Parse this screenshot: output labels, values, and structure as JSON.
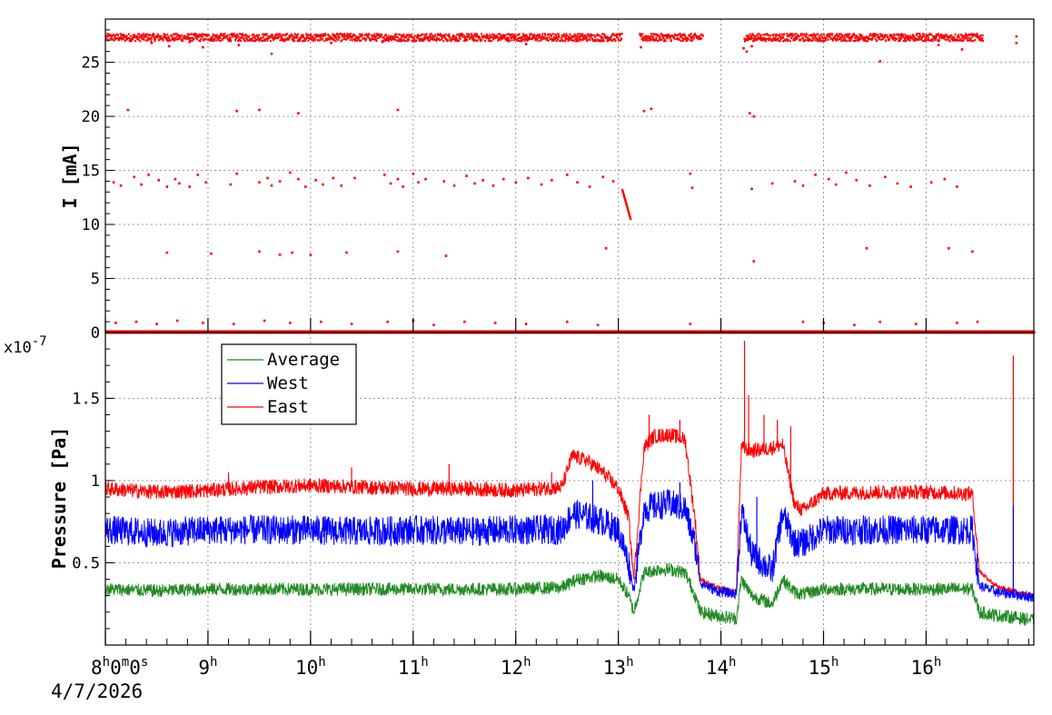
{
  "chart_data": [
    {
      "type": "scatter",
      "title": "",
      "xlabel": "",
      "ylabel": "I [mA]",
      "ylim": [
        0,
        29
      ],
      "y_ticks": [
        0,
        5,
        10,
        15,
        20,
        25
      ],
      "grid": true,
      "x_unit": "hour of day",
      "series": [
        {
          "color": "#ff0000",
          "bands": [
            {
              "level": 27.3,
              "spread": 0.35,
              "segments": [
                [
                  8.0,
                  13.03
                ],
                [
                  13.2,
                  13.82
                ],
                [
                  14.22,
                  16.55
                ]
              ]
            },
            {
              "level": 0.0,
              "spread": 0.0,
              "segments": [
                [
                  8.0,
                  17.05
                ]
              ]
            }
          ],
          "points": [
            [
              8.08,
              13.9
            ],
            [
              8.15,
              13.6
            ],
            [
              8.28,
              14.4
            ],
            [
              8.35,
              13.7
            ],
            [
              8.42,
              14.6
            ],
            [
              8.52,
              14.1
            ],
            [
              8.6,
              13.5
            ],
            [
              8.68,
              14.2
            ],
            [
              8.72,
              13.8
            ],
            [
              8.82,
              13.5
            ],
            [
              8.9,
              14.6
            ],
            [
              8.98,
              13.9
            ],
            [
              9.28,
              14.7
            ],
            [
              9.22,
              13.7
            ],
            [
              9.5,
              13.9
            ],
            [
              9.58,
              14.3
            ],
            [
              9.62,
              13.6
            ],
            [
              9.7,
              14.0
            ],
            [
              9.8,
              14.8
            ],
            [
              9.88,
              14.2
            ],
            [
              9.95,
              13.5
            ],
            [
              10.05,
              14.1
            ],
            [
              10.12,
              13.7
            ],
            [
              10.22,
              14.3
            ],
            [
              10.3,
              13.6
            ],
            [
              10.43,
              14.3
            ],
            [
              10.72,
              14.6
            ],
            [
              10.78,
              13.8
            ],
            [
              10.85,
              14.2
            ],
            [
              10.9,
              13.5
            ],
            [
              11.0,
              14.7
            ],
            [
              11.05,
              13.9
            ],
            [
              11.12,
              14.2
            ],
            [
              11.3,
              14.0
            ],
            [
              11.4,
              13.6
            ],
            [
              11.52,
              14.5
            ],
            [
              11.6,
              13.8
            ],
            [
              11.68,
              14.1
            ],
            [
              11.78,
              13.6
            ],
            [
              11.88,
              14.2
            ],
            [
              12.0,
              13.9
            ],
            [
              12.12,
              14.3
            ],
            [
              12.25,
              13.7
            ],
            [
              12.35,
              14.1
            ],
            [
              12.5,
              14.6
            ],
            [
              12.6,
              13.9
            ],
            [
              12.72,
              13.5
            ],
            [
              12.85,
              14.4
            ],
            [
              12.95,
              14.0
            ],
            [
              13.7,
              14.7
            ],
            [
              13.72,
              13.4
            ],
            [
              14.3,
              13.3
            ],
            [
              14.5,
              13.8
            ],
            [
              14.72,
              14.0
            ],
            [
              14.8,
              13.6
            ],
            [
              14.92,
              14.6
            ],
            [
              15.05,
              14.2
            ],
            [
              15.12,
              13.7
            ],
            [
              15.22,
              14.8
            ],
            [
              15.32,
              14.1
            ],
            [
              15.45,
              13.6
            ],
            [
              15.6,
              14.4
            ],
            [
              15.72,
              13.8
            ],
            [
              15.85,
              13.5
            ],
            [
              16.05,
              13.9
            ],
            [
              16.18,
              14.2
            ],
            [
              16.3,
              13.5
            ],
            [
              8.22,
              20.6
            ],
            [
              9.28,
              20.5
            ],
            [
              9.5,
              20.6
            ],
            [
              9.88,
              20.3
            ],
            [
              10.85,
              20.6
            ],
            [
              13.25,
              20.5
            ],
            [
              13.32,
              20.7
            ],
            [
              14.28,
              20.3
            ],
            [
              14.32,
              20.0
            ],
            [
              8.6,
              7.4
            ],
            [
              9.03,
              7.3
            ],
            [
              9.5,
              7.5
            ],
            [
              9.7,
              7.2
            ],
            [
              9.82,
              7.4
            ],
            [
              10.0,
              7.2
            ],
            [
              10.35,
              7.4
            ],
            [
              10.85,
              7.5
            ],
            [
              11.32,
              7.1
            ],
            [
              12.88,
              7.8
            ],
            [
              14.32,
              6.6
            ],
            [
              15.42,
              7.8
            ],
            [
              16.22,
              7.8
            ],
            [
              16.45,
              7.5
            ],
            [
              8.1,
              0.9
            ],
            [
              8.3,
              1.0
            ],
            [
              8.5,
              0.8
            ],
            [
              8.7,
              1.1
            ],
            [
              8.95,
              0.9
            ],
            [
              9.25,
              0.8
            ],
            [
              9.55,
              1.1
            ],
            [
              9.8,
              0.9
            ],
            [
              10.1,
              1.0
            ],
            [
              10.4,
              0.8
            ],
            [
              10.75,
              1.0
            ],
            [
              11.0,
              1.1
            ],
            [
              11.2,
              0.7
            ],
            [
              11.5,
              1.0
            ],
            [
              11.8,
              0.9
            ],
            [
              12.1,
              0.8
            ],
            [
              12.5,
              1.0
            ],
            [
              12.8,
              0.7
            ],
            [
              13.7,
              0.8
            ],
            [
              14.8,
              1.0
            ],
            [
              15.0,
              0.9
            ],
            [
              15.3,
              0.7
            ],
            [
              15.55,
              1.0
            ],
            [
              15.9,
              0.8
            ],
            [
              16.3,
              0.9
            ],
            [
              16.5,
              1.0
            ],
            [
              8.45,
              26.8
            ],
            [
              8.62,
              26.5
            ],
            [
              8.82,
              26.9
            ],
            [
              8.95,
              26.4
            ],
            [
              9.3,
              26.6
            ],
            [
              9.62,
              25.8
            ],
            [
              10.2,
              26.8
            ],
            [
              10.7,
              26.9
            ],
            [
              12.1,
              26.7
            ],
            [
              13.22,
              26.4
            ],
            [
              15.55,
              25.1
            ],
            [
              16.12,
              26.6
            ],
            [
              16.35,
              26.2
            ],
            [
              16.88,
              26.8
            ],
            [
              16.88,
              27.4
            ],
            [
              14.22,
              26.3
            ],
            [
              14.25,
              26.0
            ],
            [
              14.3,
              26.5
            ]
          ]
        }
      ]
    },
    {
      "type": "line",
      "title": "",
      "xlabel": "",
      "ylabel": "Pressure [Pa]",
      "y_multiplier": "x10",
      "y_multiplier_exp": "-7",
      "ylim": [
        0.0,
        1.9e-07
      ],
      "y_ticks": [
        {
          "value": 5e-08,
          "label": "0.5"
        },
        {
          "value": 1e-07,
          "label": "1"
        },
        {
          "value": 1.5e-07,
          "label": "1.5"
        }
      ],
      "grid": true,
      "legend": "top-left",
      "series": [
        {
          "name": "East",
          "color": "#ff0000",
          "x": [
            8.0,
            8.5,
            9.0,
            9.5,
            10.0,
            10.5,
            11.0,
            11.5,
            12.0,
            12.45,
            12.55,
            12.7,
            12.85,
            13.0,
            13.1,
            13.15,
            13.25,
            13.35,
            13.5,
            13.65,
            13.75,
            13.8,
            13.95,
            14.15,
            14.2,
            14.3,
            14.5,
            14.6,
            14.72,
            14.8,
            15.0,
            15.5,
            16.0,
            16.45,
            16.52,
            16.7,
            16.85,
            17.05
          ],
          "y": [
            9.5e-08,
            9.3e-08,
            9.4e-08,
            9.6e-08,
            9.7e-08,
            9.6e-08,
            9.5e-08,
            9.5e-08,
            9.4e-08,
            9.6e-08,
            1.15e-07,
            1.12e-07,
            1.05e-07,
            9.5e-08,
            7.8e-08,
            4e-08,
            1.2e-07,
            1.27e-07,
            1.28e-07,
            1.25e-07,
            7.5e-08,
            4e-08,
            3.5e-08,
            3.2e-08,
            1.2e-07,
            1.18e-07,
            1.2e-07,
            1.22e-07,
            8.5e-08,
            8.2e-08,
            9.2e-08,
            9.3e-08,
            9.3e-08,
            9.2e-08,
            4.5e-08,
            3.5e-08,
            3.3e-08,
            3e-08
          ],
          "noise": 4.5e-09,
          "spikes": [
            [
              12.35,
              1.05e-07
            ],
            [
              13.3,
              1.4e-07
            ],
            [
              13.6,
              1.37e-07
            ],
            [
              14.23,
              1.85e-07
            ],
            [
              14.27,
              1.52e-07
            ],
            [
              14.42,
              1.4e-07
            ],
            [
              14.55,
              1.37e-07
            ],
            [
              14.68,
              1.33e-07
            ],
            [
              16.85,
              1.76e-07
            ],
            [
              9.2,
              1.05e-07
            ],
            [
              10.4,
              1.08e-07
            ],
            [
              11.35,
              1.1e-07
            ]
          ]
        },
        {
          "name": "West",
          "color": "#0000ff",
          "x": [
            8.0,
            8.5,
            9.0,
            9.5,
            10.0,
            10.5,
            11.0,
            11.5,
            12.0,
            12.45,
            12.55,
            12.7,
            12.85,
            13.0,
            13.1,
            13.15,
            13.25,
            13.4,
            13.5,
            13.65,
            13.75,
            13.8,
            13.95,
            14.15,
            14.2,
            14.3,
            14.5,
            14.6,
            14.72,
            14.8,
            15.0,
            15.5,
            16.0,
            16.45,
            16.52,
            16.7,
            16.85,
            17.05
          ],
          "y": [
            7e-08,
            6.8e-08,
            7e-08,
            7e-08,
            7e-08,
            6.9e-08,
            7e-08,
            6.9e-08,
            7e-08,
            7e-08,
            8e-08,
            7.8e-08,
            7.5e-08,
            7e-08,
            5e-08,
            3.3e-08,
            8.3e-08,
            8.5e-08,
            8.6e-08,
            8.3e-08,
            6e-08,
            3.8e-08,
            3.3e-08,
            3.1e-08,
            8.2e-08,
            5.5e-08,
            4.5e-08,
            8e-08,
            6.2e-08,
            6.2e-08,
            7e-08,
            7e-08,
            7e-08,
            7e-08,
            3.6e-08,
            3.2e-08,
            3.1e-08,
            2.9e-08
          ],
          "noise": 9e-09,
          "spikes": [
            [
              12.75,
              1e-07
            ],
            [
              13.6,
              9.9e-08
            ],
            [
              14.35,
              9e-08
            ],
            [
              16.85,
              8.5e-08
            ]
          ]
        },
        {
          "name": "Average",
          "color": "#228b22",
          "x": [
            8.0,
            8.5,
            9.0,
            9.5,
            10.0,
            10.5,
            11.0,
            11.5,
            12.0,
            12.45,
            12.6,
            12.8,
            13.0,
            13.1,
            13.15,
            13.25,
            13.4,
            13.5,
            13.65,
            13.75,
            13.8,
            13.95,
            14.15,
            14.2,
            14.3,
            14.5,
            14.6,
            14.72,
            14.8,
            15.0,
            15.5,
            16.0,
            16.45,
            16.52,
            16.7,
            16.85,
            17.05
          ],
          "y": [
            3.4e-08,
            3.3e-08,
            3.4e-08,
            3.4e-08,
            3.4e-08,
            3.4e-08,
            3.4e-08,
            3.4e-08,
            3.4e-08,
            3.5e-08,
            4e-08,
            4.2e-08,
            4e-08,
            3e-08,
            2e-08,
            4.4e-08,
            4.6e-08,
            4.6e-08,
            4.4e-08,
            3e-08,
            2e-08,
            1.8e-08,
            1.6e-08,
            4e-08,
            3e-08,
            2.5e-08,
            4e-08,
            3.2e-08,
            3.1e-08,
            3.4e-08,
            3.4e-08,
            3.4e-08,
            3.4e-08,
            2e-08,
            1.8e-08,
            1.7e-08,
            1.5e-08
          ],
          "noise": 4e-09,
          "spikes": []
        }
      ]
    }
  ],
  "x_axis": {
    "type": "time",
    "range_hours": [
      8.0,
      17.05
    ],
    "ticks": [
      {
        "hour": 8,
        "text": "8",
        "unit": "h",
        "extra": [
          {
            "text": "0",
            "unit": "m"
          },
          {
            "text": "0",
            "unit": "s"
          }
        ]
      },
      {
        "hour": 9,
        "text": "9",
        "unit": "h"
      },
      {
        "hour": 10,
        "text": "10",
        "unit": "h"
      },
      {
        "hour": 11,
        "text": "11",
        "unit": "h"
      },
      {
        "hour": 12,
        "text": "12",
        "unit": "h"
      },
      {
        "hour": 13,
        "text": "13",
        "unit": "h"
      },
      {
        "hour": 14,
        "text": "14",
        "unit": "h"
      },
      {
        "hour": 15,
        "text": "15",
        "unit": "h"
      },
      {
        "hour": 16,
        "text": "16",
        "unit": "h"
      }
    ],
    "date": "4/7/2026"
  }
}
